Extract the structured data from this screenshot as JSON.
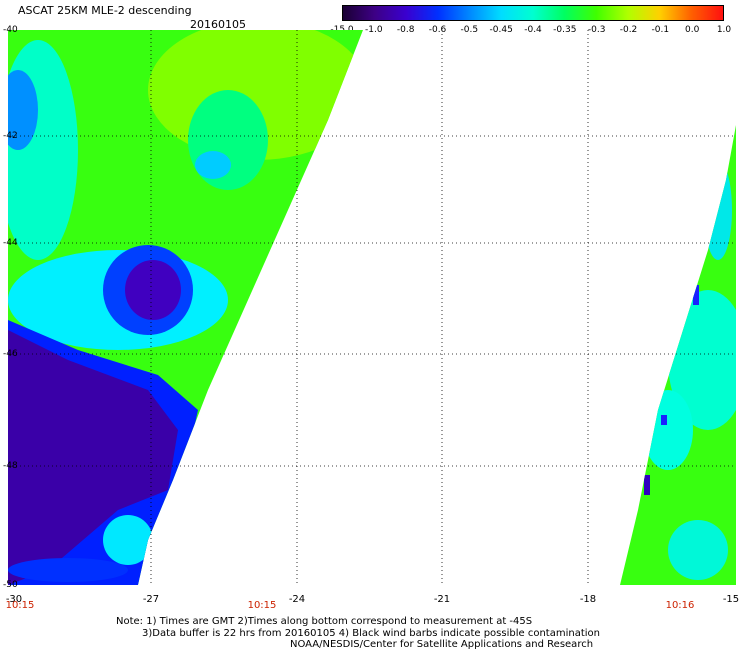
{
  "header": {
    "title": "ASCAT 25KM MLE-2 descending",
    "date": "20160105"
  },
  "colorbar": {
    "labels": [
      "-15.0",
      "-1.0",
      "-0.8",
      "-0.6",
      "-0.5",
      "-0.45",
      "-0.4",
      "-0.35",
      "-0.3",
      "-0.2",
      "-0.1",
      "0.0",
      "1.0"
    ],
    "colors": [
      "#1a0033",
      "#3d0085",
      "#3a00d0",
      "#0030ff",
      "#0088ff",
      "#00ddff",
      "#00ffd0",
      "#00ff60",
      "#40ff00",
      "#b0ff00",
      "#ffd000",
      "#ff6000",
      "#ff1010"
    ]
  },
  "axes": {
    "lat_labels": [
      "-40",
      "-42",
      "-44",
      "-46",
      "-48",
      "-50"
    ],
    "lon_labels": [
      "-30",
      "-27",
      "-24",
      "-21",
      "-18",
      "-15"
    ],
    "time_labels": [
      "10:15",
      "10:15",
      "10:16"
    ]
  },
  "swath": {
    "left_swath_upper_values": [
      "-0.3",
      "-0.35",
      "-0.2",
      "-0.4"
    ],
    "low_region_value": "-1.0"
  },
  "notes": {
    "line1": "Note: 1) Times are GMT 2)Times along bottom correspond to measurement at -45S",
    "line2": "3)Data buffer is 22 hrs from 20160105 4) Black wind barbs indicate possible contamination",
    "line3": "NOAA/NESDIS/Center for Satellite Applications and Research"
  }
}
